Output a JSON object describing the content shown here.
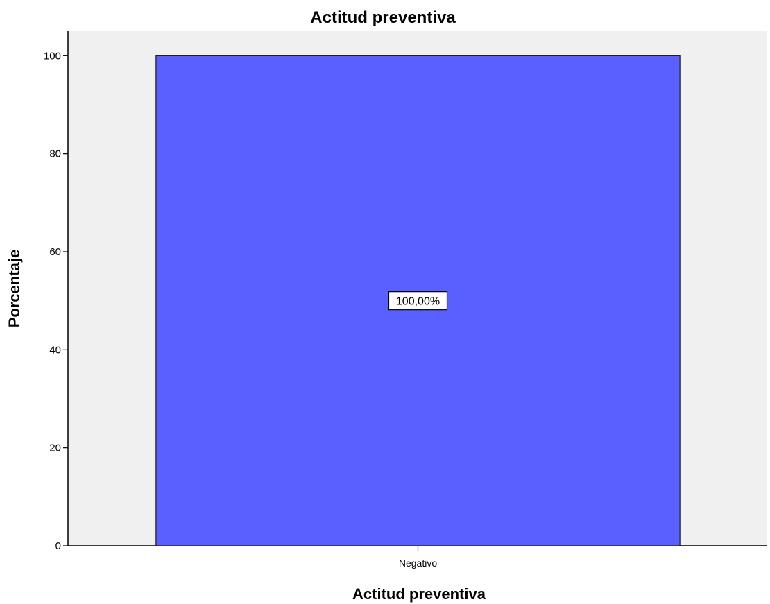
{
  "colors": {
    "plot_background": "#f0f0f0",
    "bar_fill": "#5a5fff",
    "bar_stroke": "#1a1a1a",
    "label_box": "#ffffff"
  },
  "chart_data": {
    "type": "bar",
    "title": "Actitud preventiva",
    "xlabel": "Actitud preventiva",
    "ylabel": "Porcentaje",
    "categories": [
      "Negativo"
    ],
    "values": [
      100
    ],
    "data_labels": [
      "100,00%"
    ],
    "ylim": [
      0,
      105
    ],
    "yticks": [
      0,
      20,
      40,
      60,
      80,
      100
    ],
    "ytick_labels": [
      "0",
      "20",
      "40",
      "60",
      "80",
      "100"
    ],
    "grid": false,
    "legend": "none"
  }
}
